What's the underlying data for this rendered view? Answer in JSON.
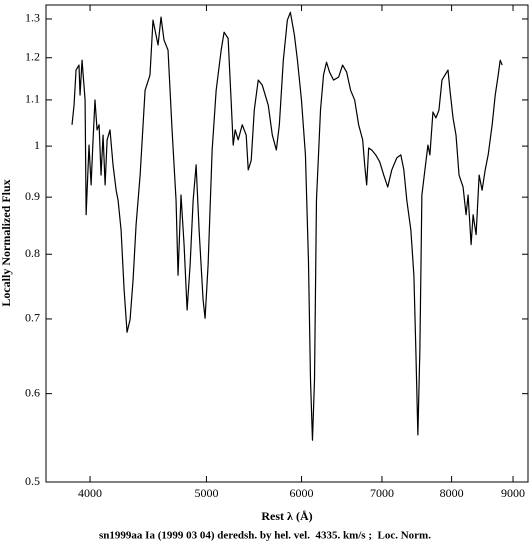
{
  "chart_data": {
    "type": "line",
    "title": "sn1999aa Ia (1999 03 04) deredsh. by hel. vel.  4335. km/s ;  Loc. Norm.",
    "xlabel": "Rest λ (Å)",
    "ylabel": "Locally Normalized Flux",
    "xscale": "log",
    "yscale": "log",
    "grid": false,
    "color": "#000000",
    "xlim": [
      3676,
      9262
    ],
    "ylim": [
      0.5,
      1.338
    ],
    "xticks": [
      4000,
      5000,
      6000,
      7000,
      8000,
      9000
    ],
    "yticks": [
      0.5,
      0.6,
      0.7,
      0.8,
      0.9,
      1,
      1.1,
      1.2,
      1.3
    ],
    "x": [
      3864,
      3879,
      3894,
      3916,
      3924,
      3939,
      3962,
      3970,
      3992,
      4008,
      4023,
      4038,
      4054,
      4070,
      4085,
      4101,
      4117,
      4133,
      4156,
      4180,
      4205,
      4221,
      4245,
      4270,
      4294,
      4319,
      4344,
      4369,
      4403,
      4445,
      4487,
      4513,
      4539,
      4557,
      4583,
      4609,
      4645,
      4681,
      4717,
      4735,
      4762,
      4790,
      4818,
      4846,
      4874,
      4902,
      4930,
      4968,
      4987,
      5016,
      5055,
      5094,
      5143,
      5172,
      5212,
      5242,
      5263,
      5283,
      5314,
      5355,
      5396,
      5417,
      5448,
      5480,
      5522,
      5565,
      5629,
      5673,
      5717,
      5750,
      5794,
      5839,
      5873,
      5918,
      5953,
      5999,
      6045,
      6080,
      6104,
      6127,
      6151,
      6174,
      6222,
      6258,
      6294,
      6331,
      6380,
      6442,
      6491,
      6542,
      6592,
      6643,
      6694,
      6746,
      6772,
      6798,
      6824,
      6864,
      6917,
      6970,
      7024,
      7078,
      7133,
      7202,
      7258,
      7300,
      7342,
      7399,
      7442,
      7470,
      7499,
      7528,
      7557,
      7601,
      7645,
      7674,
      7719,
      7763,
      7808,
      7854,
      7899,
      7945,
      7975,
      8022,
      8068,
      8115,
      8178,
      8225,
      8257,
      8305,
      8337,
      8385,
      8434,
      8482,
      8532,
      8581,
      8647,
      8698,
      8748,
      8781,
      8815
    ],
    "values": [
      1.045,
      1.088,
      1.17,
      1.182,
      1.111,
      1.194,
      1.1,
      0.868,
      1.002,
      0.923,
      1.013,
      1.1,
      1.034,
      1.045,
      0.942,
      1.023,
      0.923,
      1.013,
      1.034,
      0.962,
      0.913,
      0.894,
      0.841,
      0.743,
      0.681,
      0.699,
      0.759,
      0.85,
      0.942,
      1.122,
      1.158,
      1.297,
      1.258,
      1.232,
      1.305,
      1.245,
      1.219,
      1.034,
      0.894,
      0.766,
      0.904,
      0.816,
      0.713,
      0.783,
      0.894,
      0.962,
      0.841,
      0.728,
      0.701,
      0.783,
      0.992,
      1.122,
      1.219,
      1.265,
      1.249,
      1.1,
      1.002,
      1.034,
      1.013,
      1.045,
      1.023,
      0.952,
      0.971,
      1.077,
      1.146,
      1.134,
      1.088,
      1.023,
      0.992,
      1.045,
      1.194,
      1.297,
      1.318,
      1.258,
      1.194,
      1.1,
      0.982,
      0.79,
      0.617,
      0.545,
      0.617,
      0.894,
      1.077,
      1.158,
      1.189,
      1.165,
      1.146,
      1.153,
      1.182,
      1.165,
      1.122,
      1.1,
      1.045,
      1.013,
      0.962,
      0.923,
      0.996,
      0.992,
      0.982,
      0.968,
      0.942,
      0.919,
      0.952,
      0.976,
      0.982,
      0.952,
      0.894,
      0.841,
      0.766,
      0.657,
      0.551,
      0.657,
      0.904,
      0.952,
      1.002,
      0.982,
      1.073,
      1.06,
      1.077,
      1.146,
      1.158,
      1.17,
      1.122,
      1.06,
      1.023,
      0.942,
      0.919,
      0.868,
      0.904,
      0.816,
      0.868,
      0.833,
      0.942,
      0.913,
      0.952,
      0.982,
      1.045,
      1.111,
      1.158,
      1.194,
      1.182
    ]
  }
}
